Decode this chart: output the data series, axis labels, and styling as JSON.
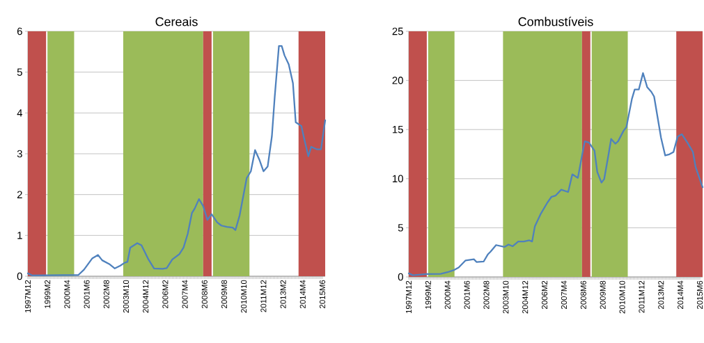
{
  "chart_data": [
    {
      "type": "line",
      "title": "Cereais",
      "grid": "y",
      "xlim": [
        "1997-12",
        "2015-08"
      ],
      "ylim": [
        0,
        6
      ],
      "yticks": [
        0,
        1,
        2,
        3,
        4,
        5,
        6
      ],
      "xticks": [
        {
          "value": "1997-12",
          "label": "1997M12"
        },
        {
          "value": "1999-02",
          "label": "1999M2"
        },
        {
          "value": "2000-04",
          "label": "2000M4"
        },
        {
          "value": "2001-06",
          "label": "2001M6"
        },
        {
          "value": "2002-08",
          "label": "2002M8"
        },
        {
          "value": "2003-10",
          "label": "2003M10"
        },
        {
          "value": "2004-12",
          "label": "2004M12"
        },
        {
          "value": "2006-02",
          "label": "2006M2"
        },
        {
          "value": "2007-04",
          "label": "2007M4"
        },
        {
          "value": "2008-06",
          "label": "2008M6"
        },
        {
          "value": "2009-08",
          "label": "2009M8"
        },
        {
          "value": "2010-10",
          "label": "2010M10"
        },
        {
          "value": "2011-12",
          "label": "2011M12"
        },
        {
          "value": "2013-02",
          "label": "2013M2"
        },
        {
          "value": "2014-04",
          "label": "2014M4"
        },
        {
          "value": "2015-06",
          "label": "2015M6"
        }
      ],
      "bands": [
        {
          "axis": "x",
          "from": "1997-12",
          "to": "1999-01",
          "color": "#c0504d"
        },
        {
          "axis": "x",
          "from": "1999-02",
          "to": "2000-09",
          "color": "#9bbb59"
        },
        {
          "axis": "x",
          "from": "2003-08",
          "to": "2008-05",
          "color": "#9bbb59"
        },
        {
          "axis": "x",
          "from": "2008-05",
          "to": "2008-11",
          "color": "#c0504d"
        },
        {
          "axis": "x",
          "from": "2008-12",
          "to": "2011-02",
          "color": "#9bbb59"
        },
        {
          "axis": "x",
          "from": "2014-01",
          "to": "2015-08",
          "color": "#c0504d"
        }
      ],
      "series": [
        {
          "color": "#4f81bd",
          "x": [
            "1997-12",
            "1998-03",
            "2000-12",
            "2001-04",
            "2001-07",
            "2001-10",
            "2002-02",
            "2002-05",
            "2002-10",
            "2003-02",
            "2003-06",
            "2003-09",
            "2003-11",
            "2004-01",
            "2004-06",
            "2004-09",
            "2005-02",
            "2005-06",
            "2005-12",
            "2006-03",
            "2006-07",
            "2006-12",
            "2007-03",
            "2007-06",
            "2007-09",
            "2007-11",
            "2008-02",
            "2008-05",
            "2008-08",
            "2008-11",
            "2009-03",
            "2009-06",
            "2009-10",
            "2010-02",
            "2010-04",
            "2010-07",
            "2010-12",
            "2011-03",
            "2011-06",
            "2011-09",
            "2011-12",
            "2012-03",
            "2012-06",
            "2012-08",
            "2012-11",
            "2013-01",
            "2013-03",
            "2013-06",
            "2013-09",
            "2013-11",
            "2014-03",
            "2014-05",
            "2014-08",
            "2014-10",
            "2015-02",
            "2015-05",
            "2015-08"
          ],
          "values": [
            0.07,
            0.02,
            0.03,
            0.16,
            0.3,
            0.44,
            0.52,
            0.39,
            0.3,
            0.19,
            0.26,
            0.33,
            0.35,
            0.7,
            0.81,
            0.76,
            0.41,
            0.19,
            0.18,
            0.2,
            0.41,
            0.54,
            0.7,
            1.04,
            1.55,
            1.66,
            1.89,
            1.72,
            1.38,
            1.52,
            1.32,
            1.24,
            1.21,
            1.19,
            1.13,
            1.49,
            2.4,
            2.57,
            3.09,
            2.86,
            2.57,
            2.69,
            3.43,
            4.39,
            5.64,
            5.64,
            5.41,
            5.19,
            4.73,
            3.77,
            3.68,
            3.37,
            2.94,
            3.17,
            3.11,
            3.11,
            3.82
          ]
        }
      ]
    },
    {
      "type": "line",
      "title": "Combustíveis",
      "grid": "y",
      "xlim": [
        "1997-12",
        "2015-08"
      ],
      "ylim": [
        0,
        25
      ],
      "yticks": [
        0,
        5,
        10,
        15,
        20,
        25
      ],
      "xticks": [
        {
          "value": "1997-12",
          "label": "1997M12"
        },
        {
          "value": "1999-02",
          "label": "1999M2"
        },
        {
          "value": "2000-04",
          "label": "2000M4"
        },
        {
          "value": "2001-06",
          "label": "2001M6"
        },
        {
          "value": "2002-08",
          "label": "2002M8"
        },
        {
          "value": "2003-10",
          "label": "2003M10"
        },
        {
          "value": "2004-12",
          "label": "2004M12"
        },
        {
          "value": "2006-02",
          "label": "2006M2"
        },
        {
          "value": "2007-04",
          "label": "2007M4"
        },
        {
          "value": "2008-06",
          "label": "2008M6"
        },
        {
          "value": "2009-08",
          "label": "2009M8"
        },
        {
          "value": "2010-10",
          "label": "2010M10"
        },
        {
          "value": "2011-12",
          "label": "2011M12"
        },
        {
          "value": "2013-02",
          "label": "2013M2"
        },
        {
          "value": "2014-04",
          "label": "2014M4"
        },
        {
          "value": "2015-06",
          "label": "2015M6"
        }
      ],
      "bands": [
        {
          "axis": "x",
          "from": "1997-12",
          "to": "1999-01",
          "color": "#c0504d"
        },
        {
          "axis": "x",
          "from": "1999-02",
          "to": "2000-09",
          "color": "#9bbb59"
        },
        {
          "axis": "x",
          "from": "2003-08",
          "to": "2008-05",
          "color": "#9bbb59"
        },
        {
          "axis": "x",
          "from": "2008-05",
          "to": "2008-11",
          "color": "#c0504d"
        },
        {
          "axis": "x",
          "from": "2008-12",
          "to": "2011-02",
          "color": "#9bbb59"
        },
        {
          "axis": "x",
          "from": "2014-01",
          "to": "2015-08",
          "color": "#c0504d"
        }
      ],
      "series": [
        {
          "color": "#4f81bd",
          "x": [
            "1997-12",
            "1998-03",
            "1999-01",
            "1999-11",
            "2000-04",
            "2000-09",
            "2000-12",
            "2001-05",
            "2001-11",
            "2002-01",
            "2002-06",
            "2002-09",
            "2002-11",
            "2003-03",
            "2003-09",
            "2003-12",
            "2004-03",
            "2004-07",
            "2004-11",
            "2005-03",
            "2005-05",
            "2005-07",
            "2005-11",
            "2006-04",
            "2006-07",
            "2006-10",
            "2007-02",
            "2007-07",
            "2007-10",
            "2008-02",
            "2008-05",
            "2008-07",
            "2008-10",
            "2009-02",
            "2009-04",
            "2009-07",
            "2009-09",
            "2009-12",
            "2010-02",
            "2010-05",
            "2010-07",
            "2010-11",
            "2011-01",
            "2011-05",
            "2011-07",
            "2011-10",
            "2012-01",
            "2012-04",
            "2012-07",
            "2012-09",
            "2013-02",
            "2013-05",
            "2013-08",
            "2013-11",
            "2014-02",
            "2014-05",
            "2014-09",
            "2015-01",
            "2015-03",
            "2015-08"
          ],
          "values": [
            0.36,
            0.17,
            0.29,
            0.31,
            0.48,
            0.72,
            0.96,
            1.68,
            1.8,
            1.51,
            1.56,
            2.28,
            2.57,
            3.24,
            3.05,
            3.29,
            3.12,
            3.6,
            3.6,
            3.72,
            3.6,
            5.16,
            6.36,
            7.56,
            8.16,
            8.28,
            8.88,
            8.64,
            10.44,
            10.08,
            12.36,
            13.8,
            13.68,
            12.84,
            10.68,
            9.6,
            9.96,
            12.36,
            14.04,
            13.56,
            13.8,
            14.88,
            15.24,
            18.12,
            19.08,
            19.08,
            20.75,
            19.32,
            18.84,
            18.36,
            14.16,
            12.36,
            12.48,
            12.72,
            14.28,
            14.52,
            13.68,
            12.72,
            11.16,
            9.12
          ]
        }
      ]
    }
  ]
}
